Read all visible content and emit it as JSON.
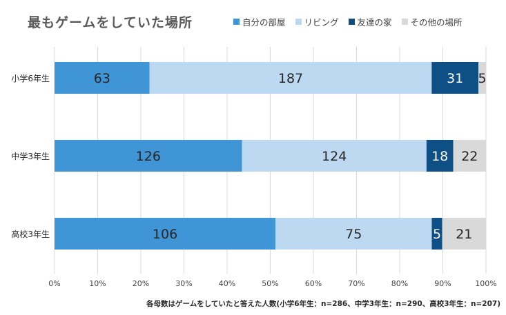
{
  "title": "最もゲームをしていた場所",
  "legend": {
    "items": [
      {
        "label": "自分の部屋",
        "color": "#3f95d6"
      },
      {
        "label": "リビング",
        "color": "#bcd9f1"
      },
      {
        "label": "友達の家",
        "color": "#0e4f86"
      },
      {
        "label": "その他の場所",
        "color": "#d9d9d9"
      }
    ]
  },
  "footnote": "各母数はゲームをしていたと答えた人数(小学6年生：n=286、中学3年生：n=290、高校3年生：n=207)",
  "chart_data": {
    "type": "bar",
    "orientation": "horizontal",
    "stacking": "percent",
    "title": "最もゲームをしていた場所",
    "categories": [
      "小学6年生",
      "中学3年生",
      "高校3年生"
    ],
    "series": [
      {
        "name": "自分の部屋",
        "values": [
          63,
          126,
          106
        ],
        "color": "#3f95d6",
        "label_color": "#262626"
      },
      {
        "name": "リビング",
        "values": [
          187,
          124,
          75
        ],
        "color": "#bcd9f1",
        "label_color": "#262626"
      },
      {
        "name": "友達の家",
        "values": [
          31,
          18,
          5
        ],
        "color": "#0e4f86",
        "label_color": "#ffffff"
      },
      {
        "name": "その他の場所",
        "values": [
          5,
          22,
          21
        ],
        "color": "#d9d9d9",
        "label_color": "#262626"
      }
    ],
    "x_ticks": [
      "0%",
      "10%",
      "20%",
      "30%",
      "40%",
      "50%",
      "60%",
      "70%",
      "80%",
      "90%",
      "100%"
    ],
    "xlim": [
      0,
      100
    ],
    "grid": true,
    "legend_position": "top"
  }
}
